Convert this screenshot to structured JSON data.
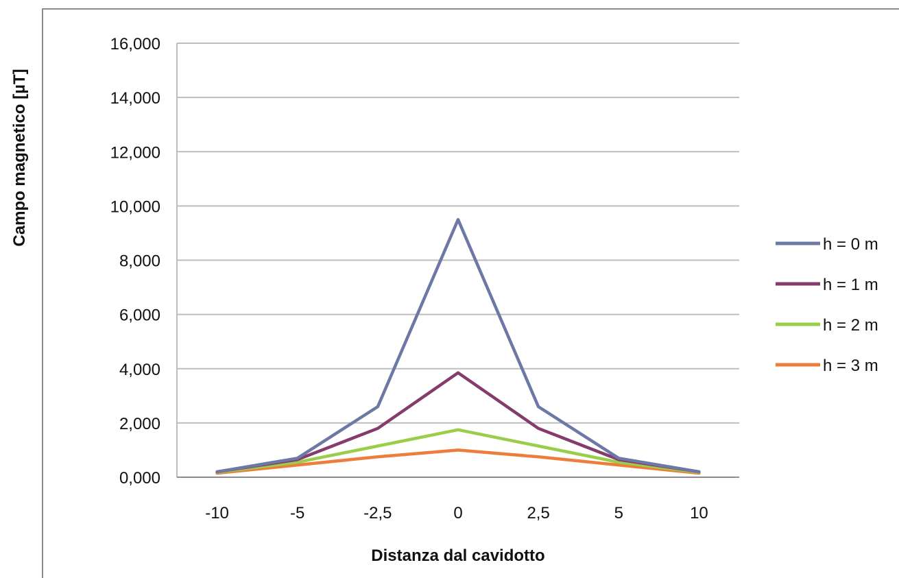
{
  "chart_data": {
    "type": "line",
    "title": "",
    "xlabel": "Distanza dal cavidotto",
    "ylabel": "Campo magnetico [µT]",
    "categories": [
      "-10",
      "-5",
      "-2,5",
      "0",
      "2,5",
      "5",
      "10"
    ],
    "ylim": [
      0,
      16
    ],
    "ytick_values": [
      0,
      2,
      4,
      6,
      8,
      10,
      12,
      14,
      16
    ],
    "ytick_labels": [
      "0,000",
      "2,000",
      "4,000",
      "6,000",
      "8,000",
      "10,000",
      "12,000",
      "14,000",
      "16,000"
    ],
    "grid": true,
    "legend_position": "right",
    "series": [
      {
        "name": "h = 0 m",
        "color": "#6e78a6",
        "values": [
          0.2,
          0.7,
          2.6,
          9.5,
          2.6,
          0.7,
          0.2
        ]
      },
      {
        "name": "h = 1 m",
        "color": "#843c6c",
        "values": [
          0.2,
          0.65,
          1.8,
          3.85,
          1.8,
          0.65,
          0.2
        ]
      },
      {
        "name": "h = 2 m",
        "color": "#9acd4a",
        "values": [
          0.18,
          0.55,
          1.15,
          1.75,
          1.15,
          0.55,
          0.18
        ]
      },
      {
        "name": "h = 3 m",
        "color": "#ec7d3b",
        "values": [
          0.15,
          0.45,
          0.75,
          1.0,
          0.75,
          0.45,
          0.15
        ]
      }
    ]
  }
}
